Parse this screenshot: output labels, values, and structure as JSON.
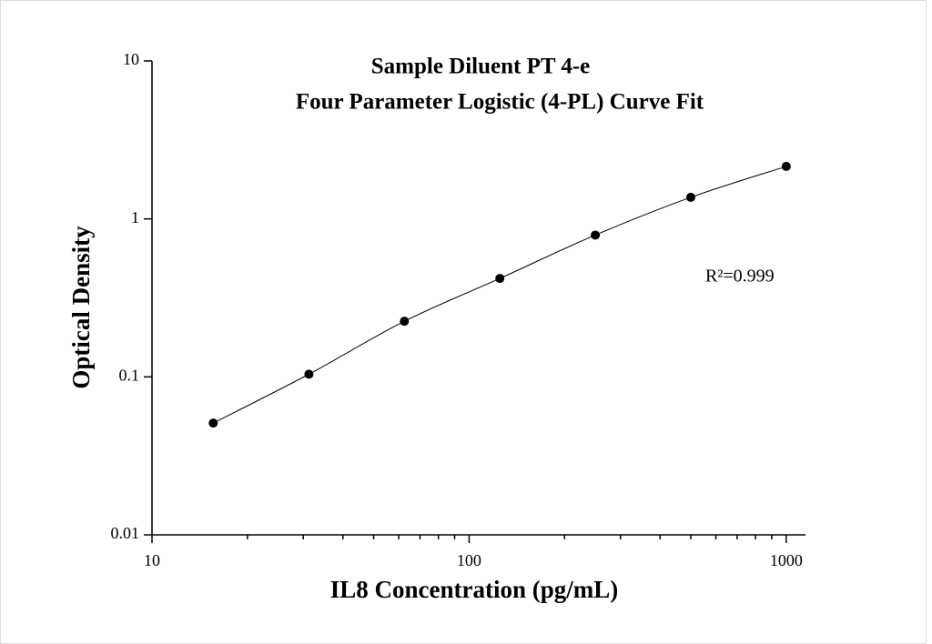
{
  "chart_data": {
    "type": "scatter",
    "title": [
      "Sample Diluent PT 4-e",
      "Four Parameter Logistic (4-PL) Curve Fit"
    ],
    "x_label": "IL8 Concentration (pg/mL)",
    "y_label": "Optical Density",
    "annotation": "R²=0.999",
    "x": [
      15.6,
      31.25,
      62.5,
      125,
      250,
      500,
      1000
    ],
    "values": [
      0.051,
      0.104,
      0.225,
      0.42,
      0.79,
      1.37,
      2.15
    ],
    "color": "#000000",
    "fit_line": true,
    "xlim": [
      10,
      1150
    ],
    "xticks": [
      10,
      100,
      1000
    ],
    "x_log": true,
    "x_minor_ticks": true,
    "ylim": [
      0.01,
      10
    ],
    "yticks": [
      0.01,
      0.1,
      1,
      10
    ],
    "y_log": true
  }
}
